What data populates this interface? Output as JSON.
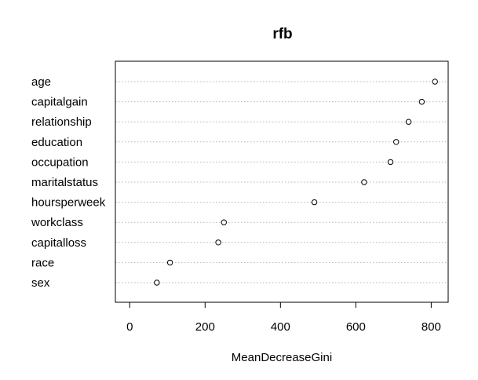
{
  "chart_data": {
    "type": "scatter",
    "title": "rfb",
    "xlabel": "MeanDecreaseGini",
    "ylabel": "",
    "xlim": [
      -38,
      845
    ],
    "xticks": [
      0,
      200,
      400,
      600,
      800
    ],
    "grid": "horizontal dotted",
    "points": [
      {
        "label": "age",
        "value": 810
      },
      {
        "label": "capitalgain",
        "value": 775
      },
      {
        "label": "relationship",
        "value": 740
      },
      {
        "label": "education",
        "value": 707
      },
      {
        "label": "occupation",
        "value": 692
      },
      {
        "label": "maritalstatus",
        "value": 622
      },
      {
        "label": "hoursperweek",
        "value": 490
      },
      {
        "label": "workclass",
        "value": 250
      },
      {
        "label": "capitalloss",
        "value": 235
      },
      {
        "label": "race",
        "value": 107
      },
      {
        "label": "sex",
        "value": 72
      }
    ]
  }
}
